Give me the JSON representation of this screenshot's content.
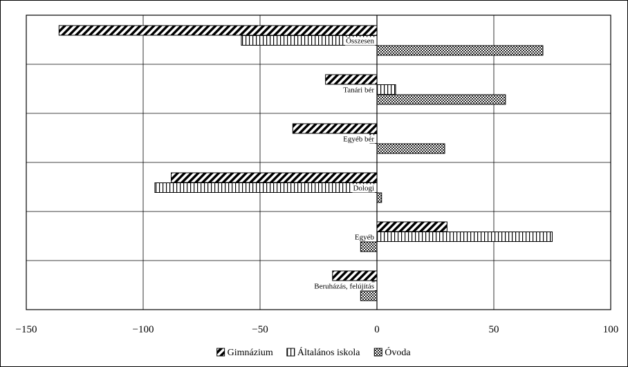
{
  "chart_data": {
    "type": "bar",
    "orientation": "horizontal",
    "categories": [
      "Összesen",
      "Tanári bér",
      "Egyéb bér",
      "Dologi",
      "Egyéb",
      "Beruházás, felújítás"
    ],
    "series": [
      {
        "name": "Gimnázium",
        "pattern": "diagonal-hatch",
        "values": [
          -136,
          -22,
          -36,
          -88,
          30,
          -19
        ]
      },
      {
        "name": "Általános iskola",
        "pattern": "vertical-hatch",
        "values": [
          -58,
          8,
          -3,
          -95,
          75,
          -2
        ]
      },
      {
        "name": "Óvoda",
        "pattern": "checker",
        "values": [
          71,
          55,
          29,
          2,
          -7,
          -7
        ]
      }
    ],
    "xlim": [
      -150,
      100
    ],
    "xticks": [
      -150,
      -100,
      -50,
      0,
      50,
      100
    ],
    "xtick_labels": [
      "−150",
      "−100",
      "−50",
      "0",
      "50",
      "100"
    ],
    "grid": true,
    "legend_position": "bottom",
    "title": "",
    "xlabel": "",
    "ylabel": ""
  }
}
